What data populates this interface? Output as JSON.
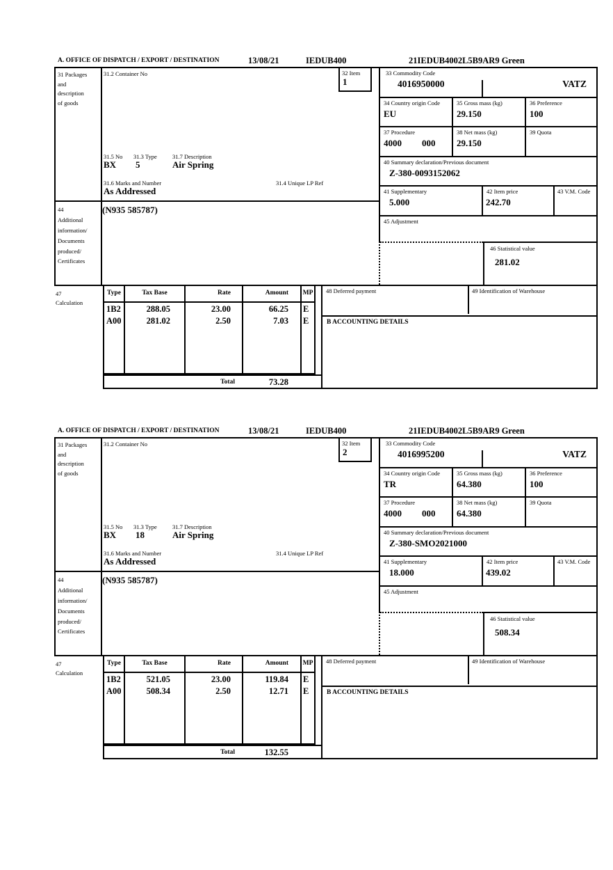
{
  "labels": {
    "office_dispatch": "A. OFFICE OF DISPATCH / EXPORT / DESTINATION",
    "packages": "31 Packages\nand\ndescription\nof goods",
    "container_no": "31.2 Container No",
    "item": "32 Item",
    "commodity_code": "33 Commodity Code",
    "pkg_no": "31.5 No",
    "pkg_type": "31.3 Type",
    "pkg_description": "31.7 Description",
    "marks_and_number": "31.6 Marks and Number",
    "unique_lp_ref": "31.4 Unique LP Ref",
    "country_origin": "34 Country origin Code",
    "gross_mass": "35 Gross mass (kg)",
    "preference": "36 Preference",
    "procedure": "37 Procedure",
    "net_mass": "38 Net mass (kg)",
    "quota": "39 Quota",
    "summary_declaration": "40 Summary declaration/Previous document",
    "supplementary": "41 Supplementary",
    "item_price": "42 Item price",
    "vm_code": "43 V.M. Code",
    "additional_information": "44\nAdditional\ninformation/\nDocuments\nproduced/\nCertificates",
    "adjustment": "45 Adjustment",
    "statistical_value": "46 Statistical value",
    "calculation": "47\nCalculation",
    "deferred_payment": "48 Deferred payment",
    "warehouse": "49 Identification of Warehouse",
    "accounting_details": "B ACCOUNTING DETAILS",
    "total": "Total",
    "calc_type": "Type",
    "calc_tax_base": "Tax Base",
    "calc_rate": "Rate",
    "calc_amount": "Amount",
    "calc_mp": "MP"
  },
  "sections": [
    {
      "header": {
        "date": "13/08/21",
        "office": "IEDUB400",
        "reference": "21IEDUB4002L5B9AR9 Green"
      },
      "item_no": "1",
      "commodity_code": "4016950000",
      "vat_code": "VATZ",
      "country_origin": "EU",
      "gross_mass": "29.150",
      "preference": "100",
      "procedure": "4000",
      "procedure_ext": "000",
      "net_mass": "29.150",
      "summary_declaration": "Z-380-0093152062",
      "supplementary": "5.000",
      "item_price": "242.70",
      "statistical_value": "281.02",
      "package_no": "BX",
      "package_type": "5",
      "description": "Air Spring",
      "marks": "As Addressed",
      "additional_info": "(N935 585787)",
      "calc": {
        "rows": [
          {
            "type": "1B2",
            "tax_base": "288.05",
            "rate": "23.00",
            "amount": "66.25",
            "mp": "E"
          },
          {
            "type": "A00",
            "tax_base": "281.02",
            "rate": "2.50",
            "amount": "7.03",
            "mp": "E"
          }
        ],
        "total": "73.28"
      }
    },
    {
      "header": {
        "date": "13/08/21",
        "office": "IEDUB400",
        "reference": "21IEDUB4002L5B9AR9 Green"
      },
      "item_no": "2",
      "commodity_code": "4016995200",
      "vat_code": "VATZ",
      "country_origin": "TR",
      "gross_mass": "64.380",
      "preference": "100",
      "procedure": "4000",
      "procedure_ext": "000",
      "net_mass": "64.380",
      "summary_declaration": "Z-380-SMO2021000",
      "supplementary": "18.000",
      "item_price": "439.02",
      "statistical_value": "508.34",
      "package_no": "BX",
      "package_type": "18",
      "description": "Air Spring",
      "marks": "As Addressed",
      "additional_info": "(N935 585787)",
      "calc": {
        "rows": [
          {
            "type": "1B2",
            "tax_base": "521.05",
            "rate": "23.00",
            "amount": "119.84",
            "mp": "E"
          },
          {
            "type": "A00",
            "tax_base": "508.34",
            "rate": "2.50",
            "amount": "12.71",
            "mp": "E"
          }
        ],
        "total": "132.55"
      }
    }
  ]
}
